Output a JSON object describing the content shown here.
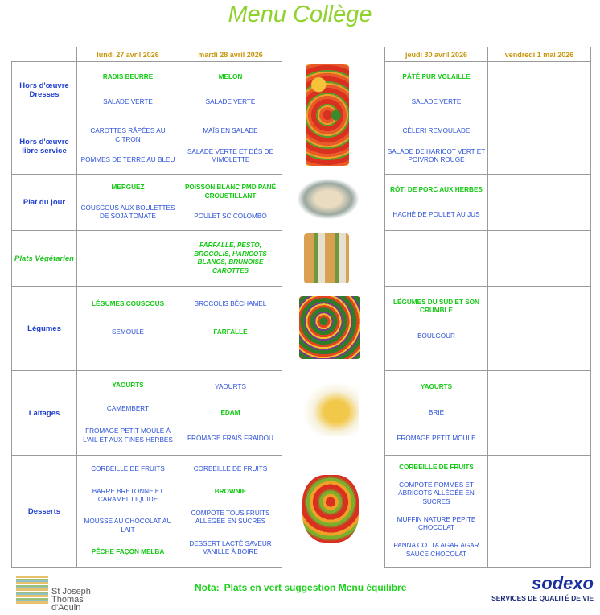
{
  "title": "Menu Collège",
  "days": [
    "lundi 27 avril 2026",
    "mardi 28 avril 2026",
    "jeudi 30 avril 2026",
    "vendredi 1 mai 2026"
  ],
  "rows": [
    {
      "label": "Hors d'œuvre Dresses",
      "mon": [
        {
          "t": "RADIS BEURRE",
          "g": true
        },
        {
          "t": "SALADE VERTE"
        }
      ],
      "tue": [
        {
          "t": "MELON",
          "g": true
        },
        {
          "t": "SALADE VERTE"
        }
      ],
      "thu": [
        {
          "t": "PÂTÉ PUR VOLAILLE",
          "g": true
        },
        {
          "t": "SALADE VERTE"
        }
      ],
      "fri": []
    },
    {
      "label": "Hors d'œuvre libre service",
      "mon": [
        {
          "t": "CAROTTES RÂPÉES AU CITRON"
        },
        {
          "t": "POMMES DE TERRE AU BLEU"
        }
      ],
      "tue": [
        {
          "t": "MAÏS EN SALADE"
        },
        {
          "t": "SALADE VERTE ET DÉS DE MIMOLETTE"
        }
      ],
      "thu": [
        {
          "t": "CÉLERI REMOULADE"
        },
        {
          "t": "SALADE DE HARICOT VERT ET POIVRON ROUGE"
        }
      ],
      "fri": []
    },
    {
      "label": "Plat du jour",
      "mon": [
        {
          "t": "MERGUEZ",
          "g": true
        },
        {
          "t": "COUSCOUS AUX BOULETTES DE SOJA TOMATE"
        }
      ],
      "tue": [
        {
          "t": "POISSON BLANC PMD PANÉ CROUSTILLANT",
          "g": true
        },
        {
          "t": "POULET SC COLOMBO"
        }
      ],
      "thu": [
        {
          "t": "RÔTI DE PORC AUX HERBES",
          "g": true
        },
        {
          "t": "HACHÉ DE POULET AU JUS"
        }
      ],
      "fri": []
    },
    {
      "label": "Plats Végétarien",
      "veg": true,
      "mon": [],
      "tue": [
        {
          "t": "FARFALLE, PESTO, BROCOLIS, HARICOTS BLANCS, BRUNOISE CAROTTES",
          "g": true,
          "i": true
        }
      ],
      "thu": [],
      "fri": []
    },
    {
      "label": "Légumes",
      "mon": [
        {
          "t": "LÉGUMES COUSCOUS",
          "g": true
        },
        {
          "t": "SEMOULE"
        },
        {
          "t": ""
        }
      ],
      "tue": [
        {
          "t": "BROCOLIS BÉCHAMEL"
        },
        {
          "t": "FARFALLE",
          "g": true
        },
        {
          "t": ""
        }
      ],
      "thu": [
        {
          "t": "LÉGUMES DU SUD ET SON CRUMBLE",
          "g": true
        },
        {
          "t": "BOULGOUR"
        },
        {
          "t": ""
        }
      ],
      "fri": []
    },
    {
      "label": "Laitages",
      "mon": [
        {
          "t": "YAOURTS",
          "g": true
        },
        {
          "t": "CAMEMBERT"
        },
        {
          "t": "FROMAGE PETIT MOULÉ À L'AIL ET AUX FINES HERBES"
        }
      ],
      "tue": [
        {
          "t": "YAOURTS"
        },
        {
          "t": "EDAM",
          "g": true
        },
        {
          "t": "FROMAGE FRAIS FRAIDOU"
        }
      ],
      "thu": [
        {
          "t": "YAOURTS",
          "g": true
        },
        {
          "t": "BRIE"
        },
        {
          "t": "FROMAGE PETIT MOULE"
        }
      ],
      "fri": []
    },
    {
      "label": "Desserts",
      "mon": [
        {
          "t": "CORBEILLE DE FRUITS"
        },
        {
          "t": "BARRE BRETONNE ET CARAMEL LIQUIDE"
        },
        {
          "t": "MOUSSE AU CHOCOLAT AU LAIT"
        },
        {
          "t": "PÊCHE FAÇON MELBA",
          "g": true
        }
      ],
      "tue": [
        {
          "t": "CORBEILLE DE FRUITS"
        },
        {
          "t": "BROWNIE",
          "g": true
        },
        {
          "t": "COMPOTE TOUS FRUITS ALLÉGÉE EN SUCRES"
        },
        {
          "t": "DESSERT LACTÉ SAVEUR VANILLE À BOIRE"
        }
      ],
      "thu": [
        {
          "t": "CORBEILLE DE FRUITS",
          "g": true
        },
        {
          "t": "COMPOTE POMMES ET ABRICOTS ALLÉGÉE EN SUCRES"
        },
        {
          "t": "MUFFIN NATURE PEPITE CHOCOLAT"
        },
        {
          "t": "PANNA COTTA AGAR AGAR SAUCE CHOCOLAT"
        }
      ],
      "fri": []
    }
  ],
  "footer": {
    "nota_label": "Nota:",
    "nota_text": "Plats en vert suggestion Menu équilibre",
    "school_logo": "Enseignement et formation St Joseph Thomas d'Aquin",
    "sodexo_word": "sodexo",
    "sodexo_tagline": "SERVICES DE QUALITÉ DE VIE"
  },
  "colors": {
    "green": "#13c913",
    "blue": "#2a4fd6",
    "header": "#c8960c",
    "title": "#8fd22c"
  }
}
